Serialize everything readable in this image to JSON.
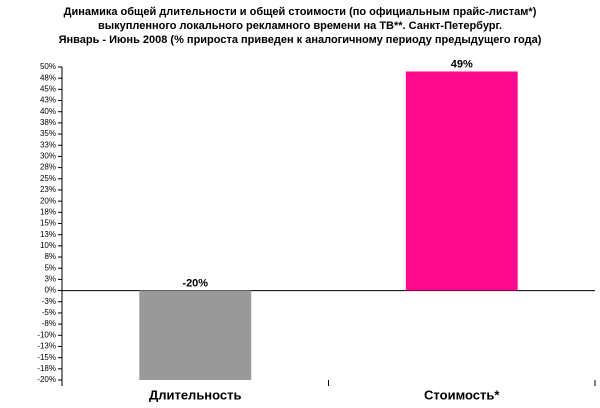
{
  "chart_data": {
    "type": "bar",
    "title": [
      "Динамика общей длительности и общей стоимости (по официальным прайс-листам*)",
      "выкупленного локального рекламного времени на ТВ**. Санкт-Петербург.",
      "Январь - Июнь 2008 (% прироста приведен к аналогичному периоду предыдущего года)"
    ],
    "categories": [
      "Длительность",
      "Стоимость*"
    ],
    "values": [
      -20,
      49
    ],
    "value_labels": [
      "-20%",
      "49%"
    ],
    "colors": [
      "#999999",
      "#ff0a8c"
    ],
    "ylim": [
      -20,
      50
    ],
    "yticks": [
      {
        "value": -20,
        "label": "-20%"
      },
      {
        "value": -17.5,
        "label": "-18%"
      },
      {
        "value": -15,
        "label": "-15%"
      },
      {
        "value": -12.5,
        "label": "-13%"
      },
      {
        "value": -10,
        "label": "-10%"
      },
      {
        "value": -7.5,
        "label": "-8%"
      },
      {
        "value": -5,
        "label": "-5%"
      },
      {
        "value": -2.5,
        "label": "-3%"
      },
      {
        "value": 0,
        "label": "0%"
      },
      {
        "value": 2.5,
        "label": "3%"
      },
      {
        "value": 5,
        "label": "5%"
      },
      {
        "value": 7.5,
        "label": "8%"
      },
      {
        "value": 10,
        "label": "10%"
      },
      {
        "value": 12.5,
        "label": "13%"
      },
      {
        "value": 15,
        "label": "15%"
      },
      {
        "value": 17.5,
        "label": "18%"
      },
      {
        "value": 20,
        "label": "20%"
      },
      {
        "value": 22.5,
        "label": "23%"
      },
      {
        "value": 25,
        "label": "25%"
      },
      {
        "value": 27.5,
        "label": "28%"
      },
      {
        "value": 30,
        "label": "30%"
      },
      {
        "value": 32.5,
        "label": "33%"
      },
      {
        "value": 35,
        "label": "35%"
      },
      {
        "value": 37.5,
        "label": "38%"
      },
      {
        "value": 40,
        "label": "40%"
      },
      {
        "value": 42.5,
        "label": "43%"
      },
      {
        "value": 45,
        "label": "45%"
      },
      {
        "value": 47.5,
        "label": "48%"
      },
      {
        "value": 50,
        "label": "50%"
      }
    ],
    "grid": false
  }
}
